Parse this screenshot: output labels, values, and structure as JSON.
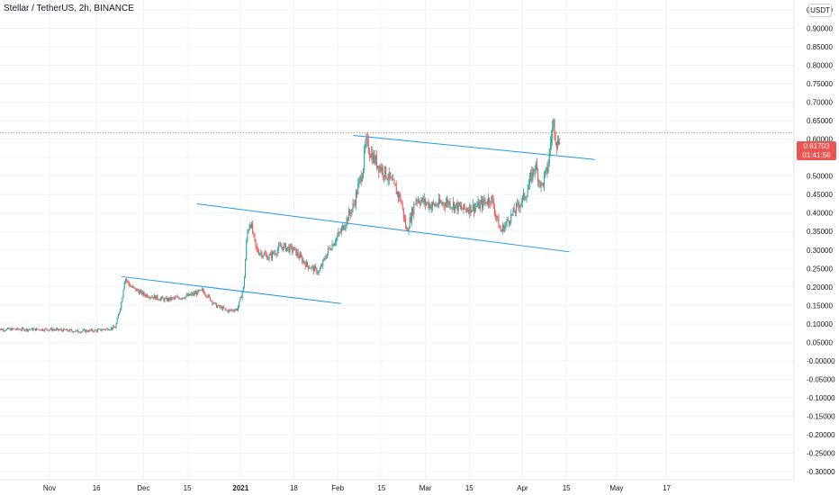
{
  "header": {
    "title": "Stellar / TetherUS, 2h, BINANCE",
    "currency": "USDT"
  },
  "price_badge": {
    "price": "0.61703",
    "countdown": "01:41:56"
  },
  "colors": {
    "up": "#26a69a",
    "down": "#ef5350",
    "trendline": "#2196f3",
    "grid": "#f0f3fa",
    "last_price_line": "#ef5350"
  },
  "chart_data": {
    "type": "candlestick",
    "symbol": "Stellar / TetherUS",
    "interval": "2h",
    "exchange": "BINANCE",
    "ylim": [
      -0.31,
      1.0
    ],
    "y_ticks": [
      "0.95000",
      "0.90000",
      "0.85000",
      "0.80000",
      "0.75000",
      "0.70000",
      "0.65000",
      "0.60000",
      "0.55000",
      "0.50000",
      "0.45000",
      "0.40000",
      "0.35000",
      "0.30000",
      "0.25000",
      "0.20000",
      "0.15000",
      "0.10000",
      "0.05000",
      "-0.00000",
      "-0.05000",
      "-0.10000",
      "-0.15000",
      "-0.20000",
      "-0.25000",
      "-0.30000"
    ],
    "x_ticks": [
      "Nov",
      "16",
      "Dec",
      "15",
      "2021",
      "18",
      "Feb",
      "15",
      "Mar",
      "15",
      "Apr",
      "15",
      "May",
      "17"
    ],
    "last_price": 0.61703,
    "price_path": [
      [
        "Nov 01",
        0.085
      ],
      [
        "Nov 10",
        0.08
      ],
      [
        "Nov 16",
        0.082
      ],
      [
        "Nov 22",
        0.09
      ],
      [
        "Nov 24",
        0.16
      ],
      [
        "Nov 25",
        0.225
      ],
      [
        "Nov 27",
        0.2
      ],
      [
        "Dec 01",
        0.18
      ],
      [
        "Dec 08",
        0.165
      ],
      [
        "Dec 15",
        0.175
      ],
      [
        "Dec 20",
        0.19
      ],
      [
        "Dec 24",
        0.15
      ],
      [
        "Dec 28",
        0.135
      ],
      [
        "Dec 31",
        0.14
      ],
      [
        "Jan 02",
        0.2
      ],
      [
        "Jan 03",
        0.34
      ],
      [
        "Jan 04",
        0.38
      ],
      [
        "Jan 06",
        0.3
      ],
      [
        "Jan 10",
        0.28
      ],
      [
        "Jan 14",
        0.31
      ],
      [
        "Jan 18",
        0.3
      ],
      [
        "Jan 22",
        0.26
      ],
      [
        "Jan 26",
        0.24
      ],
      [
        "Jan 29",
        0.3
      ],
      [
        "Feb 02",
        0.35
      ],
      [
        "Feb 06",
        0.42
      ],
      [
        "Feb 09",
        0.52
      ],
      [
        "Feb 10",
        0.59
      ],
      [
        "Feb 13",
        0.54
      ],
      [
        "Feb 17",
        0.5
      ],
      [
        "Feb 21",
        0.44
      ],
      [
        "Feb 23",
        0.35
      ],
      [
        "Feb 26",
        0.44
      ],
      [
        "Mar 03",
        0.42
      ],
      [
        "Mar 08",
        0.43
      ],
      [
        "Mar 13",
        0.41
      ],
      [
        "Mar 18",
        0.42
      ],
      [
        "Mar 22",
        0.44
      ],
      [
        "Mar 25",
        0.35
      ],
      [
        "Mar 29",
        0.4
      ],
      [
        "Apr 02",
        0.45
      ],
      [
        "Apr 05",
        0.53
      ],
      [
        "Apr 07",
        0.47
      ],
      [
        "Apr 09",
        0.52
      ],
      [
        "Apr 10",
        0.6
      ],
      [
        "Apr 11",
        0.65
      ],
      [
        "Apr 12",
        0.58
      ],
      [
        "Apr 13",
        0.617
      ]
    ],
    "trendlines": [
      {
        "start": [
          "Nov 24",
          0.228
        ],
        "end": [
          "Feb 02",
          0.155
        ]
      },
      {
        "start": [
          "Dec 18",
          0.425
        ],
        "end": [
          "Apr 16",
          0.295
        ]
      },
      {
        "start": [
          "Feb 06",
          0.61
        ],
        "end": [
          "Apr 24",
          0.545
        ]
      }
    ],
    "grid": true
  }
}
